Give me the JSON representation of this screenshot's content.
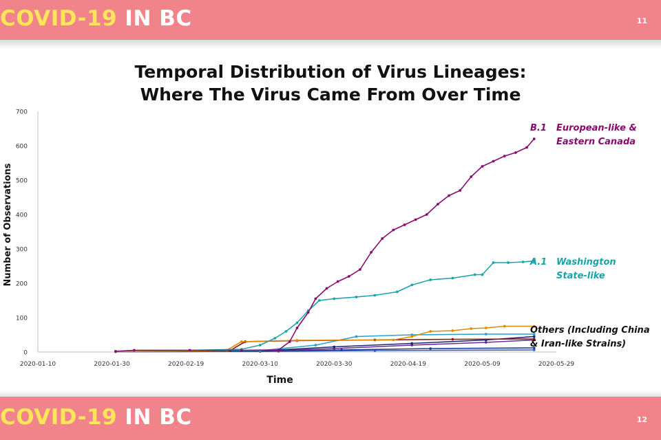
{
  "header": {
    "brand_part1": "COVID-19",
    "brand_part2": "IN BC",
    "page_number": "11"
  },
  "footer": {
    "brand_part1": "COVID-19",
    "brand_part2": "IN BC",
    "page_number": "12"
  },
  "colors": {
    "band": "#f0848a",
    "brand_yellow": "#ffe55a",
    "b1": "#8b0a6e",
    "a1": "#1aa3a8",
    "others_orange": "#e08a00"
  },
  "chart_data": {
    "type": "line",
    "title_line1": "Temporal Distribution of Virus Lineages:",
    "title_line2": "Where The Virus Came From Over Time",
    "xlabel": "Time",
    "ylabel": "Number of Observations",
    "x_ticks": [
      "2020-01-10",
      "2020-01-30",
      "2020-02-19",
      "2020-03-10",
      "2020-03-30",
      "2020-04-19",
      "2020-05-09",
      "2020-05-29"
    ],
    "y_ticks": [
      0,
      100,
      200,
      300,
      400,
      500,
      600,
      700
    ],
    "xlim": [
      "2020-01-10",
      "2020-05-29"
    ],
    "ylim": [
      0,
      700
    ],
    "annotations": [
      {
        "series": "b1",
        "tag": "B.1",
        "line1": "European-like &",
        "line2": "Eastern Canada"
      },
      {
        "series": "a1",
        "tag": "A.1",
        "line1": "Washington",
        "line2": "State-like"
      },
      {
        "series": "others",
        "tag": "",
        "line1": "Others (Including China",
        "line2": "& Iran-like Strains)"
      }
    ],
    "series": [
      {
        "id": "b1",
        "color": "#8b0a6e",
        "x": [
          "2020-01-31",
          "2020-02-05",
          "2020-02-20",
          "2020-03-05",
          "2020-03-15",
          "2020-03-18",
          "2020-03-20",
          "2020-03-23",
          "2020-03-25",
          "2020-03-28",
          "2020-03-31",
          "2020-04-03",
          "2020-04-06",
          "2020-04-09",
          "2020-04-12",
          "2020-04-15",
          "2020-04-18",
          "2020-04-21",
          "2020-04-24",
          "2020-04-27",
          "2020-04-30",
          "2020-05-03",
          "2020-05-06",
          "2020-05-09",
          "2020-05-12",
          "2020-05-15",
          "2020-05-18",
          "2020-05-21",
          "2020-05-23"
        ],
        "y": [
          2,
          5,
          5,
          5,
          6,
          30,
          70,
          115,
          155,
          185,
          205,
          220,
          240,
          290,
          330,
          355,
          370,
          385,
          400,
          430,
          455,
          470,
          510,
          540,
          555,
          570,
          580,
          595,
          620
        ]
      },
      {
        "id": "a1",
        "color": "#1aa3a8",
        "x": [
          "2020-01-31",
          "2020-02-05",
          "2020-02-20",
          "2020-03-05",
          "2020-03-10",
          "2020-03-14",
          "2020-03-17",
          "2020-03-20",
          "2020-03-23",
          "2020-03-26",
          "2020-03-30",
          "2020-04-05",
          "2020-04-10",
          "2020-04-16",
          "2020-04-20",
          "2020-04-25",
          "2020-05-01",
          "2020-05-07",
          "2020-05-09",
          "2020-05-12",
          "2020-05-16",
          "2020-05-20",
          "2020-05-23"
        ],
        "y": [
          2,
          5,
          5,
          8,
          20,
          40,
          60,
          85,
          120,
          150,
          155,
          160,
          165,
          175,
          195,
          210,
          215,
          225,
          225,
          260,
          260,
          262,
          265
        ]
      },
      {
        "id": "others_orange",
        "color": "#e08a00",
        "x": [
          "2020-01-31",
          "2020-02-20",
          "2020-03-01",
          "2020-03-05",
          "2020-03-20",
          "2020-04-15",
          "2020-04-20",
          "2020-04-25",
          "2020-05-01",
          "2020-05-06",
          "2020-05-10",
          "2020-05-15",
          "2020-05-23"
        ],
        "y": [
          1,
          3,
          5,
          30,
          34,
          35,
          45,
          60,
          62,
          68,
          70,
          75,
          75
        ]
      },
      {
        "id": "others_darkred",
        "color": "#8a1a1a",
        "x": [
          "2020-01-31",
          "2020-02-20",
          "2020-03-02",
          "2020-03-06",
          "2020-03-20",
          "2020-04-10",
          "2020-05-01",
          "2020-05-23"
        ],
        "y": [
          1,
          3,
          5,
          30,
          33,
          35,
          37,
          38
        ]
      },
      {
        "id": "others_lightblue",
        "color": "#2a9fd0",
        "x": [
          "2020-01-31",
          "2020-03-10",
          "2020-03-25",
          "2020-04-05",
          "2020-04-20",
          "2020-05-10",
          "2020-05-23"
        ],
        "y": [
          1,
          4,
          20,
          45,
          50,
          52,
          52
        ]
      },
      {
        "id": "others_navy",
        "color": "#1a2a6e",
        "x": [
          "2020-01-31",
          "2020-03-10",
          "2020-03-30",
          "2020-04-20",
          "2020-05-10",
          "2020-05-23"
        ],
        "y": [
          1,
          3,
          15,
          25,
          35,
          45
        ]
      },
      {
        "id": "others_purple",
        "color": "#6a2a9a",
        "x": [
          "2020-01-31",
          "2020-03-10",
          "2020-03-30",
          "2020-04-20",
          "2020-05-10",
          "2020-05-23"
        ],
        "y": [
          1,
          2,
          10,
          20,
          28,
          35
        ]
      },
      {
        "id": "others_darkblue",
        "color": "#1e3f8f",
        "x": [
          "2020-01-31",
          "2020-03-10",
          "2020-04-01",
          "2020-04-25",
          "2020-05-23"
        ],
        "y": [
          1,
          2,
          6,
          10,
          12
        ]
      },
      {
        "id": "others_blue2",
        "color": "#3a5fbf",
        "x": [
          "2020-01-31",
          "2020-03-15",
          "2020-04-10",
          "2020-05-23"
        ],
        "y": [
          1,
          2,
          4,
          6
        ]
      }
    ]
  }
}
